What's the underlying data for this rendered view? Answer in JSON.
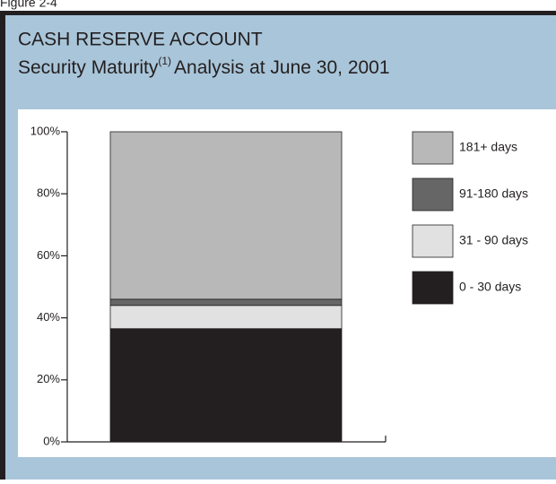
{
  "figure_label": "Figure 2-4",
  "chart_data": {
    "type": "stacked_bar",
    "title": "CASH RESERVE ACCOUNT",
    "subtitle": "Security Maturity",
    "subtitle_footnote": "(1)",
    "subtitle_rest": "Analysis at June 30, 2001",
    "categories": [
      null
    ],
    "series": [
      {
        "name": "0 - 30 days",
        "color": "#231f20",
        "values": [
          36.5
        ]
      },
      {
        "name": "31 - 90 days",
        "color": "#e1e1e1",
        "values": [
          7.5
        ]
      },
      {
        "name": "91-180 days",
        "color": "#666666",
        "values": [
          2
        ]
      },
      {
        "name": "181+ days",
        "color": "#b8b8b8",
        "values": [
          54
        ]
      }
    ],
    "ylim": [
      0,
      100
    ],
    "yticks": [
      {
        "value": 0,
        "label": "0%"
      },
      {
        "value": 20,
        "label": "20%"
      },
      {
        "value": 40,
        "label": "40%"
      },
      {
        "value": 60,
        "label": "60%"
      },
      {
        "value": 80,
        "label": "80%"
      },
      {
        "value": 100,
        "label": "100%"
      }
    ],
    "legend": "right"
  }
}
